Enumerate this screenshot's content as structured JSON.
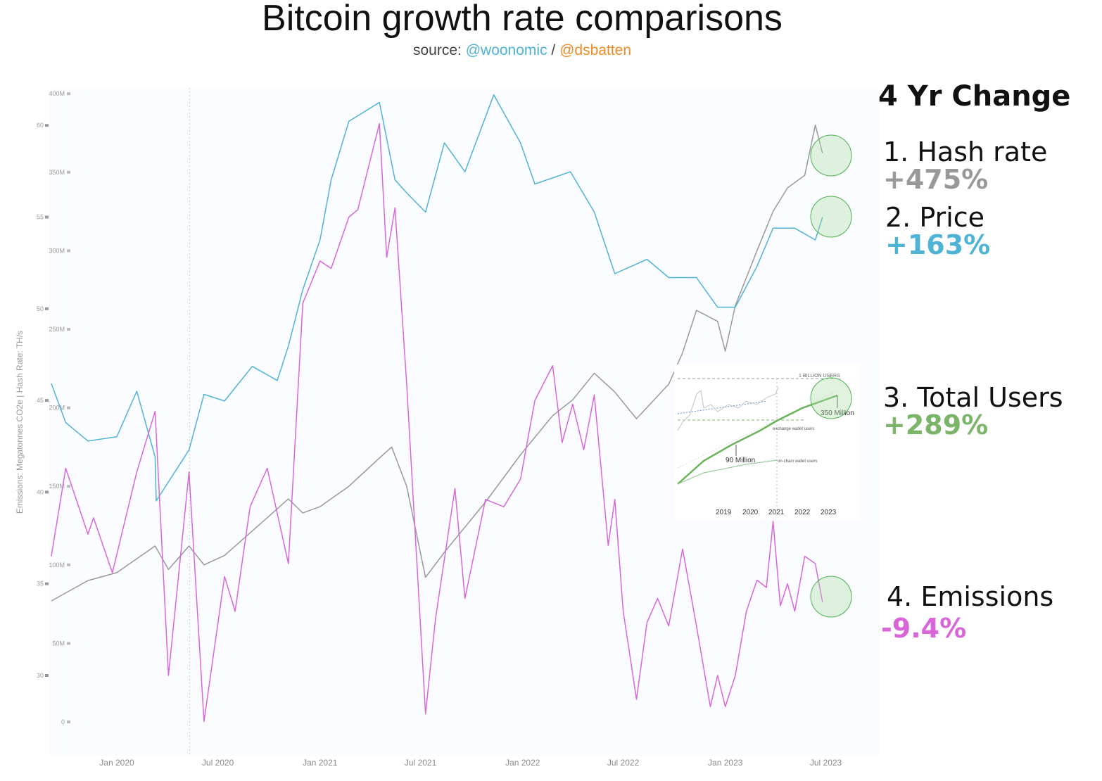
{
  "header": {
    "title": "Bitcoin growth rate comparisons",
    "source_prefix": "source:",
    "source_a": "@woonomic",
    "source_sep": "/",
    "source_b": "@dsbatten"
  },
  "panel": {
    "title": "4 Yr Change",
    "items": [
      {
        "label": "1. Hash rate",
        "value": "+475%",
        "color": "#999999"
      },
      {
        "label": "2. Price",
        "value": "+163%",
        "color": "#4fb3d6"
      },
      {
        "label": "3. Total Users",
        "value": "+289%",
        "color": "#7cb46a"
      },
      {
        "label": "4. Emissions",
        "value": "-9.4%",
        "color": "#d966d9"
      }
    ]
  },
  "inset": {
    "top_label": "1 BILLION USERS",
    "end_label": "350 Million",
    "mid_label": "90 Million",
    "exchange_label": "exchange wallet users",
    "onchain_label": "on-chain wallet users",
    "years": [
      "2019",
      "2020",
      "2021",
      "2022",
      "2023"
    ]
  },
  "chart_data": {
    "type": "line",
    "title": "Bitcoin growth rate comparisons",
    "ylabel": "Emissions: Megatonnes CO2e | Hash Rate: TH/s",
    "x_ticks": [
      "Jan 2020",
      "Jul 2020",
      "Jan 2021",
      "Jul 2021",
      "Jan 2022",
      "Jul 2022",
      "Jan 2023",
      "Jul 2023"
    ],
    "x_tick_dates": [
      "2020-01-01",
      "2020-07-01",
      "2021-01-01",
      "2021-07-01",
      "2022-01-01",
      "2022-07-01",
      "2023-01-01",
      "2023-07-01"
    ],
    "hash_axis": {
      "ticks": [
        "0",
        "50M",
        "100M",
        "150M",
        "200M",
        "250M",
        "300M",
        "350M",
        "400M"
      ],
      "range": [
        0,
        400000000
      ]
    },
    "emissions_axis": {
      "ticks": [
        "30",
        "35",
        "40",
        "45",
        "50",
        "55",
        "60"
      ],
      "range": [
        30,
        60
      ]
    },
    "vertical_marker_date": "2020-05-11",
    "grid": false,
    "series": [
      {
        "name": "Hash rate",
        "color": "#999999",
        "axis": "hash",
        "points": [
          [
            "2019-09-05",
            77000000.0
          ],
          [
            "2019-11-10",
            90000000.0
          ],
          [
            "2020-01-01",
            95000000.0
          ],
          [
            "2020-03-10",
            112000000.0
          ],
          [
            "2020-04-03",
            97000000.0
          ],
          [
            "2020-05-10",
            112000000.0
          ],
          [
            "2020-06-06",
            100000000.0
          ],
          [
            "2020-07-13",
            106000000.0
          ],
          [
            "2020-09-28",
            130000000.0
          ],
          [
            "2020-11-05",
            142000000.0
          ],
          [
            "2020-12-01",
            133000000.0
          ],
          [
            "2021-01-01",
            137000000.0
          ],
          [
            "2021-02-22",
            150000000.0
          ],
          [
            "2021-04-18",
            168000000.0
          ],
          [
            "2021-05-10",
            175000000.0
          ],
          [
            "2021-06-06",
            150000000.0
          ],
          [
            "2021-07-10",
            92000000.0
          ],
          [
            "2021-08-13",
            108000000.0
          ],
          [
            "2021-10-26",
            140000000.0
          ],
          [
            "2021-12-28",
            170000000.0
          ],
          [
            "2022-02-24",
            195000000.0
          ],
          [
            "2022-04-01",
            205000000.0
          ],
          [
            "2022-05-10",
            222000000.0
          ],
          [
            "2022-06-16",
            210000000.0
          ],
          [
            "2022-07-25",
            193000000.0
          ],
          [
            "2022-09-21",
            215000000.0
          ],
          [
            "2022-10-16",
            235000000.0
          ],
          [
            "2022-11-10",
            262000000.0
          ],
          [
            "2022-12-18",
            255000000.0
          ],
          [
            "2023-01-01",
            236000000.0
          ],
          [
            "2023-01-19",
            265000000.0
          ],
          [
            "2023-02-27",
            300000000.0
          ],
          [
            "2023-03-28",
            325000000.0
          ],
          [
            "2023-04-23",
            340000000.0
          ],
          [
            "2023-05-24",
            348000000.0
          ],
          [
            "2023-06-12",
            380000000.0
          ],
          [
            "2023-06-25",
            362000000.0
          ]
        ]
      },
      {
        "name": "Price",
        "color": "#4fb3d6",
        "axis": "price-log",
        "points": [
          [
            "2019-09-05",
            10500
          ],
          [
            "2019-10-01",
            8200
          ],
          [
            "2019-11-10",
            7300
          ],
          [
            "2020-01-01",
            7500
          ],
          [
            "2020-02-06",
            10000
          ],
          [
            "2020-03-10",
            6600
          ],
          [
            "2020-03-12",
            5000
          ],
          [
            "2020-05-10",
            6900
          ],
          [
            "2020-06-06",
            9800
          ],
          [
            "2020-07-13",
            9400
          ],
          [
            "2020-09-01",
            11700
          ],
          [
            "2020-10-16",
            10700
          ],
          [
            "2020-11-05",
            13300
          ],
          [
            "2020-12-01",
            19000
          ],
          [
            "2021-01-01",
            26000
          ],
          [
            "2021-01-21",
            38000
          ],
          [
            "2021-02-22",
            55000
          ],
          [
            "2021-04-18",
            62000
          ],
          [
            "2021-05-16",
            38000
          ],
          [
            "2021-06-06",
            35000
          ],
          [
            "2021-07-10",
            31000
          ],
          [
            "2021-08-13",
            48000
          ],
          [
            "2021-09-19",
            40000
          ],
          [
            "2021-11-10",
            65000
          ],
          [
            "2021-12-28",
            48000
          ],
          [
            "2022-01-23",
            37000
          ],
          [
            "2022-03-28",
            40000
          ],
          [
            "2022-05-10",
            31000
          ],
          [
            "2022-06-16",
            21000
          ],
          [
            "2022-08-13",
            23000
          ],
          [
            "2022-09-21",
            20500
          ],
          [
            "2022-11-10",
            20500
          ],
          [
            "2022-12-18",
            17000
          ],
          [
            "2023-01-19",
            17000
          ],
          [
            "2023-02-27",
            22000
          ],
          [
            "2023-03-28",
            28000
          ],
          [
            "2023-05-06",
            28000
          ],
          [
            "2023-06-12",
            26000
          ],
          [
            "2023-06-25",
            30000
          ]
        ]
      },
      {
        "name": "Emissions",
        "color": "#d966d9",
        "axis": "emissions",
        "points": [
          [
            "2019-09-05",
            36.5
          ],
          [
            "2019-10-01",
            41.3
          ],
          [
            "2019-11-10",
            37.7
          ],
          [
            "2019-11-20",
            38.6
          ],
          [
            "2019-12-24",
            35.6
          ],
          [
            "2020-02-06",
            41.1
          ],
          [
            "2020-03-10",
            44.4
          ],
          [
            "2020-04-03",
            30.0
          ],
          [
            "2020-05-10",
            41.1
          ],
          [
            "2020-06-06",
            27.5
          ],
          [
            "2020-07-13",
            35.4
          ],
          [
            "2020-08-01",
            33.5
          ],
          [
            "2020-08-28",
            39.2
          ],
          [
            "2020-09-28",
            41.3
          ],
          [
            "2020-11-05",
            36.1
          ],
          [
            "2020-12-01",
            50.3
          ],
          [
            "2021-01-01",
            52.6
          ],
          [
            "2021-01-21",
            52.2
          ],
          [
            "2021-02-22",
            55.0
          ],
          [
            "2021-03-10",
            55.4
          ],
          [
            "2021-04-18",
            60.1
          ],
          [
            "2021-05-01",
            52.8
          ],
          [
            "2021-05-16",
            55.5
          ],
          [
            "2021-06-06",
            45.9
          ],
          [
            "2021-07-10",
            27.9
          ],
          [
            "2021-07-28",
            33.1
          ],
          [
            "2021-09-01",
            40.2
          ],
          [
            "2021-09-19",
            34.2
          ],
          [
            "2021-10-26",
            39.6
          ],
          [
            "2021-11-28",
            39.2
          ],
          [
            "2021-12-28",
            40.7
          ],
          [
            "2022-01-23",
            45.0
          ],
          [
            "2022-02-24",
            46.9
          ],
          [
            "2022-03-13",
            42.7
          ],
          [
            "2022-04-01",
            44.8
          ],
          [
            "2022-04-21",
            42.3
          ],
          [
            "2022-05-10",
            45.3
          ],
          [
            "2022-06-04",
            37.1
          ],
          [
            "2022-06-16",
            39.6
          ],
          [
            "2022-07-01",
            33.5
          ],
          [
            "2022-07-25",
            28.7
          ],
          [
            "2022-08-13",
            32.9
          ],
          [
            "2022-09-01",
            34.2
          ],
          [
            "2022-09-21",
            32.7
          ],
          [
            "2022-10-16",
            36.9
          ],
          [
            "2022-11-10",
            32.7
          ],
          [
            "2022-12-05",
            28.3
          ],
          [
            "2022-12-18",
            30.0
          ],
          [
            "2023-01-01",
            28.3
          ],
          [
            "2023-01-19",
            30.0
          ],
          [
            "2023-02-08",
            33.5
          ],
          [
            "2023-02-27",
            35.2
          ],
          [
            "2023-03-16",
            34.8
          ],
          [
            "2023-03-28",
            38.4
          ],
          [
            "2023-04-10",
            33.8
          ],
          [
            "2023-04-23",
            35.0
          ],
          [
            "2023-05-06",
            33.5
          ],
          [
            "2023-05-24",
            36.5
          ],
          [
            "2023-06-12",
            36.1
          ],
          [
            "2023-06-25",
            34.0
          ]
        ]
      }
    ]
  }
}
